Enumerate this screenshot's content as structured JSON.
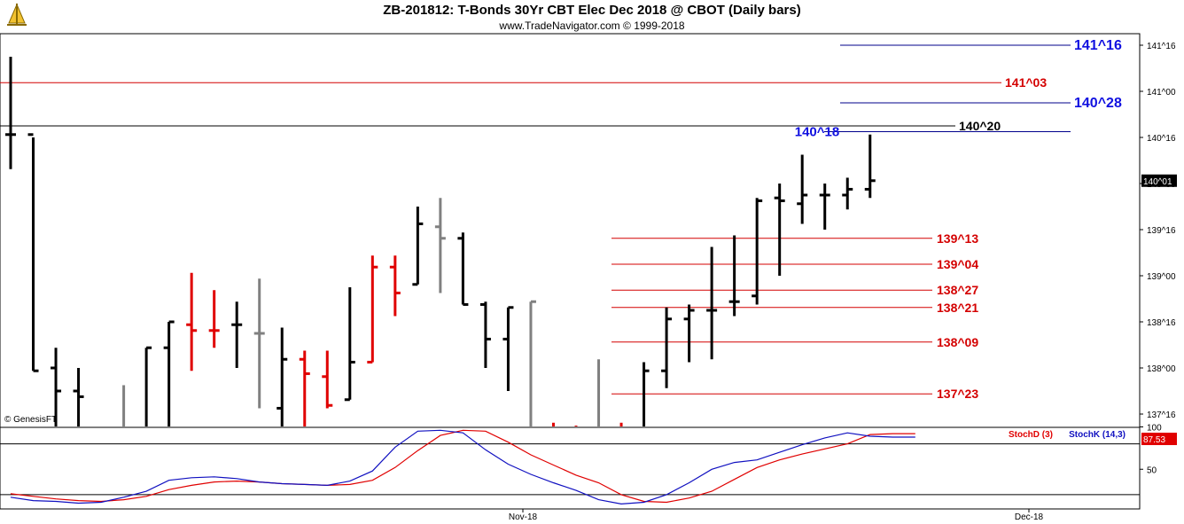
{
  "header": {
    "title": "ZB-201812:  T-Bonds 30Yr CBT Elec Dec 2018 @ CBOT  (Daily bars)",
    "subtitle": "www.TradeNavigator.com © 1999-2018"
  },
  "credit": "© GenesisFT",
  "colors": {
    "up_bar": "#000000",
    "down_bar": "#e00000",
    "neutral_bar": "#808080",
    "support_line": "#d40000",
    "target_line": "#00008b",
    "target_text": "#1010e0",
    "stoch_d": "#e00000",
    "stoch_k": "#1010c0"
  },
  "chart_data": [
    {
      "type": "bar",
      "subtype": "ohlc",
      "name": "ZB-201812 daily bars",
      "price_unit": "ticks of 1/32 (140^01 = 140 + 1/32)",
      "y_tick_labels": [
        "141^16",
        "141^00",
        "140^16",
        "140^00",
        "139^16",
        "139^00",
        "138^16",
        "138^00",
        "137^16"
      ],
      "x_tick_labels": [
        "Nov-18",
        "Dec-18"
      ],
      "last_price_label": "140^01",
      "bars": [
        {
          "o": 140.531,
          "h": 141.375,
          "l": 140.156,
          "c": 140.531,
          "color": "black"
        },
        {
          "o": 140.531,
          "h": 140.5,
          "l": 137.969,
          "c": 137.969,
          "color": "black"
        },
        {
          "o": 138.0,
          "h": 138.219,
          "l": 136.0,
          "c": 137.75,
          "color": "black"
        },
        {
          "o": 137.75,
          "h": 138.0,
          "l": 136.0,
          "c": 137.688,
          "color": "black"
        },
        {
          "o": 136.5,
          "h": 137.25,
          "l": 136.0,
          "c": 136.5,
          "color": "black"
        },
        {
          "o": 137.0,
          "h": 137.813,
          "l": 136.5,
          "c": 137.0,
          "color": "gray"
        },
        {
          "o": 137.094,
          "h": 138.219,
          "l": 136.0,
          "c": 138.219,
          "color": "black"
        },
        {
          "o": 138.219,
          "h": 138.5,
          "l": 137.25,
          "c": 138.5,
          "color": "black"
        },
        {
          "o": 138.469,
          "h": 139.031,
          "l": 137.969,
          "c": 138.406,
          "color": "red"
        },
        {
          "o": 138.406,
          "h": 138.844,
          "l": 138.219,
          "c": 138.406,
          "color": "red"
        },
        {
          "o": 138.469,
          "h": 138.719,
          "l": 138.0,
          "c": 138.469,
          "color": "black"
        },
        {
          "o": 138.375,
          "h": 138.969,
          "l": 137.563,
          "c": 138.375,
          "color": "gray"
        },
        {
          "o": 137.563,
          "h": 138.438,
          "l": 137.125,
          "c": 138.094,
          "color": "black"
        },
        {
          "o": 138.094,
          "h": 138.188,
          "l": 137.219,
          "c": 137.938,
          "color": "red"
        },
        {
          "o": 137.906,
          "h": 138.188,
          "l": 137.563,
          "c": 137.594,
          "color": "red"
        },
        {
          "o": 137.656,
          "h": 138.875,
          "l": 137.656,
          "c": 138.063,
          "color": "black"
        },
        {
          "o": 138.063,
          "h": 139.219,
          "l": 138.063,
          "c": 139.094,
          "color": "red"
        },
        {
          "o": 139.094,
          "h": 139.219,
          "l": 138.563,
          "c": 138.813,
          "color": "red"
        },
        {
          "o": 138.906,
          "h": 139.75,
          "l": 138.906,
          "c": 139.563,
          "color": "black"
        },
        {
          "o": 139.531,
          "h": 139.844,
          "l": 138.813,
          "c": 139.406,
          "color": "gray"
        },
        {
          "o": 139.406,
          "h": 139.469,
          "l": 138.688,
          "c": 138.688,
          "color": "black"
        },
        {
          "o": 138.688,
          "h": 138.719,
          "l": 138.0,
          "c": 138.313,
          "color": "black"
        },
        {
          "o": 138.313,
          "h": 138.656,
          "l": 137.75,
          "c": 138.656,
          "color": "black"
        },
        {
          "o": 136.0,
          "h": 138.719,
          "l": 136.0,
          "c": 138.719,
          "color": "gray"
        },
        {
          "o": 137.313,
          "h": 137.406,
          "l": 136.0,
          "c": 137.313,
          "color": "red"
        },
        {
          "o": 137.281,
          "h": 137.375,
          "l": 136.0,
          "c": 137.281,
          "color": "red"
        },
        {
          "o": 136.0,
          "h": 138.094,
          "l": 136.0,
          "c": 136.0,
          "color": "gray"
        },
        {
          "o": 136.0,
          "h": 137.406,
          "l": 136.0,
          "c": 136.0,
          "color": "red"
        },
        {
          "o": 136.0,
          "h": 138.063,
          "l": 136.0,
          "c": 137.969,
          "color": "black"
        },
        {
          "o": 137.969,
          "h": 138.656,
          "l": 137.781,
          "c": 138.531,
          "color": "black"
        },
        {
          "o": 138.531,
          "h": 138.688,
          "l": 138.063,
          "c": 138.625,
          "color": "black"
        },
        {
          "o": 138.625,
          "h": 139.313,
          "l": 138.094,
          "c": 138.625,
          "color": "black"
        },
        {
          "o": 138.719,
          "h": 139.438,
          "l": 138.563,
          "c": 138.719,
          "color": "black"
        },
        {
          "o": 138.781,
          "h": 139.844,
          "l": 138.688,
          "c": 139.813,
          "color": "black"
        },
        {
          "o": 139.844,
          "h": 140.0,
          "l": 139.0,
          "c": 139.813,
          "color": "black"
        },
        {
          "o": 139.781,
          "h": 140.313,
          "l": 139.563,
          "c": 139.875,
          "color": "black"
        },
        {
          "o": 139.875,
          "h": 140.0,
          "l": 139.5,
          "c": 139.875,
          "color": "black"
        },
        {
          "o": 139.875,
          "h": 140.063,
          "l": 139.719,
          "c": 139.938,
          "color": "black"
        },
        {
          "o": 139.938,
          "h": 140.531,
          "l": 139.844,
          "c": 140.031,
          "color": "black"
        }
      ],
      "horizontal_levels": [
        {
          "label": "141^16",
          "price": 141.5,
          "style": "target"
        },
        {
          "label": "141^03",
          "price": 141.094,
          "style": "support"
        },
        {
          "label": "140^28",
          "price": 140.875,
          "style": "target"
        },
        {
          "label": "140^20",
          "price": 140.625,
          "style": "black"
        },
        {
          "label": "140^18",
          "price": 140.563,
          "style": "target-left"
        },
        {
          "label": "139^13",
          "price": 139.406,
          "style": "support"
        },
        {
          "label": "139^04",
          "price": 139.125,
          "style": "support"
        },
        {
          "label": "138^27",
          "price": 138.844,
          "style": "support"
        },
        {
          "label": "138^21",
          "price": 138.656,
          "style": "support"
        },
        {
          "label": "138^09",
          "price": 138.281,
          "style": "support"
        },
        {
          "label": "137^23",
          "price": 137.719,
          "style": "support"
        }
      ]
    },
    {
      "type": "line",
      "name": "Stochastic oscillator",
      "y_tick_labels": [
        "100",
        "50"
      ],
      "ylim": [
        0,
        100
      ],
      "reference_lines": [
        80,
        20
      ],
      "last_value_label": "87.53",
      "series": [
        {
          "name": "StochD (3)",
          "values": [
            21,
            18,
            15,
            13,
            12,
            14,
            18,
            26,
            31,
            35,
            36,
            35,
            33,
            32,
            31,
            32,
            37,
            52,
            72,
            90,
            96,
            95,
            82,
            67,
            55,
            43,
            34,
            20,
            12,
            11,
            16,
            24,
            38,
            52,
            61,
            68,
            74,
            80,
            91,
            92,
            92
          ]
        },
        {
          "name": "StochK (14,3)",
          "values": [
            17,
            13,
            12,
            10,
            11,
            17,
            24,
            37,
            40,
            41,
            39,
            35,
            33,
            32,
            31,
            36,
            48,
            76,
            95,
            96,
            93,
            73,
            56,
            44,
            34,
            25,
            14,
            9,
            11,
            20,
            34,
            50,
            58,
            61,
            70,
            79,
            87,
            93,
            89,
            88,
            88
          ]
        }
      ]
    }
  ]
}
